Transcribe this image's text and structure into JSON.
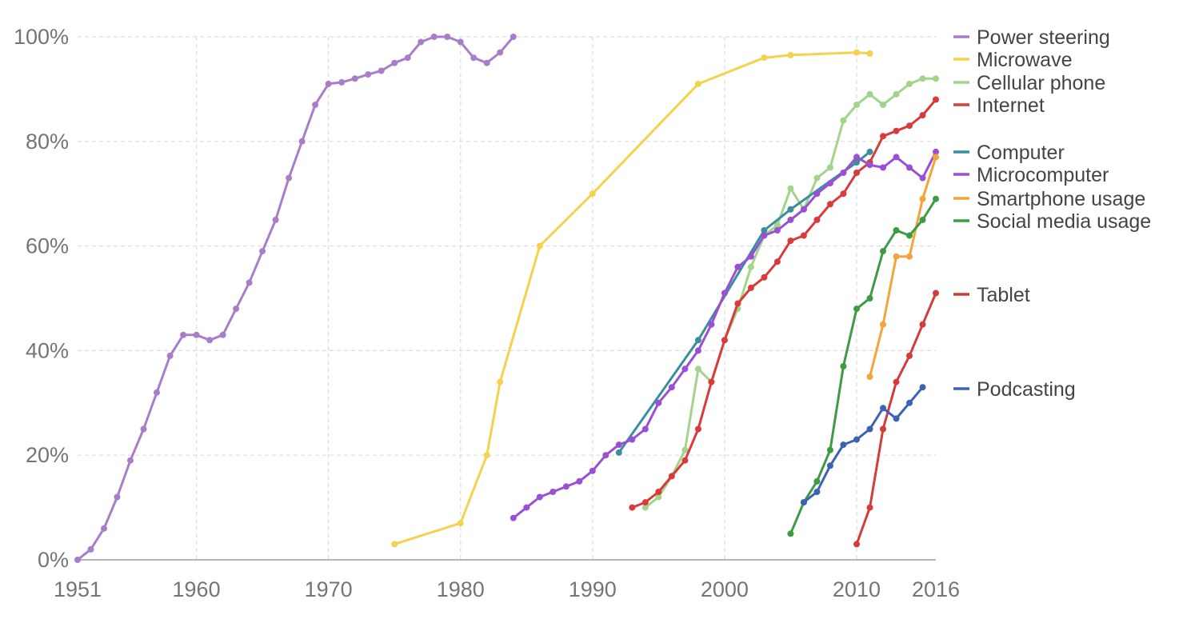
{
  "chart_data": {
    "type": "line",
    "title": "",
    "xlabel": "",
    "ylabel": "",
    "xlim": [
      1951,
      2016
    ],
    "ylim": [
      0,
      100
    ],
    "grid": true,
    "legend_placement": "right",
    "x_ticks": [
      {
        "value": 1951,
        "label": "1951"
      },
      {
        "value": 1960,
        "label": "1960"
      },
      {
        "value": 1970,
        "label": "1970"
      },
      {
        "value": 1980,
        "label": "1980"
      },
      {
        "value": 1990,
        "label": "1990"
      },
      {
        "value": 2000,
        "label": "2000"
      },
      {
        "value": 2010,
        "label": "2010"
      },
      {
        "value": 2016,
        "label": "2016"
      }
    ],
    "y_ticks": [
      {
        "value": 0,
        "label": "0%"
      },
      {
        "value": 20,
        "label": "20%"
      },
      {
        "value": 40,
        "label": "40%"
      },
      {
        "value": 60,
        "label": "60%"
      },
      {
        "value": 80,
        "label": "80%"
      },
      {
        "value": 100,
        "label": "100%"
      }
    ],
    "series": [
      {
        "name": "Power steering",
        "color": "#a97ec9",
        "x": [
          1951,
          1952,
          1953,
          1954,
          1955,
          1956,
          1957,
          1958,
          1959,
          1960,
          1961,
          1962,
          1963,
          1964,
          1965,
          1966,
          1967,
          1968,
          1969,
          1970,
          1971,
          1972,
          1973,
          1974,
          1975,
          1976,
          1977,
          1978,
          1979,
          1980,
          1981,
          1982,
          1983,
          1984
        ],
        "y": [
          0,
          2,
          6,
          12,
          19,
          25,
          32,
          39,
          43,
          43,
          42,
          43,
          48,
          53,
          59,
          65,
          73,
          80,
          87,
          91,
          91.3,
          92,
          92.8,
          93.5,
          95,
          96,
          99,
          100,
          100,
          99,
          96,
          95,
          97,
          100
        ]
      },
      {
        "name": "Microwave",
        "color": "#f5d24e",
        "x": [
          1975,
          1980,
          1982,
          1983,
          1986,
          1990,
          1998,
          2003,
          2005,
          2010,
          2011
        ],
        "y": [
          3,
          7,
          20,
          34,
          60,
          70,
          91,
          96,
          96.5,
          97,
          96.8
        ]
      },
      {
        "name": "Cellular phone",
        "color": "#a3d48a",
        "x": [
          1994,
          1995,
          1996,
          1997,
          1998,
          1999,
          2000,
          2001,
          2002,
          2003,
          2004,
          2005,
          2006,
          2007,
          2008,
          2009,
          2010,
          2011,
          2012,
          2013,
          2014,
          2015,
          2016
        ],
        "y": [
          10,
          12,
          16,
          21,
          36.5,
          34,
          42,
          48,
          56,
          62,
          64,
          71,
          67,
          73,
          75,
          84,
          87,
          89,
          87,
          89,
          91,
          92,
          92
        ]
      },
      {
        "name": "Internet",
        "color": "#d93a3a",
        "x": [
          1993,
          1994,
          1995,
          1996,
          1997,
          1998,
          1999,
          2000,
          2001,
          2002,
          2003,
          2004,
          2005,
          2006,
          2007,
          2008,
          2009,
          2010,
          2011,
          2012,
          2013,
          2014,
          2015,
          2016
        ],
        "y": [
          10,
          11,
          13,
          16,
          19,
          25,
          34,
          42,
          49,
          52,
          54,
          57,
          61,
          62,
          65,
          68,
          70,
          74,
          76,
          81,
          82,
          83,
          85,
          88
        ]
      },
      {
        "name": "Computer",
        "color": "#3a8f9e",
        "x": [
          1992,
          1998,
          2003,
          2005,
          2010,
          2011
        ],
        "y": [
          20.5,
          42,
          63,
          67,
          76,
          78
        ]
      },
      {
        "name": "Microcomputer",
        "color": "#9b4fd4",
        "x": [
          1984,
          1985,
          1986,
          1987,
          1988,
          1989,
          1990,
          1991,
          1992,
          1993,
          1994,
          1995,
          1996,
          1997,
          1998,
          1999,
          2000,
          2001,
          2002,
          2003,
          2004,
          2005,
          2006,
          2007,
          2008,
          2009,
          2010,
          2011,
          2012,
          2013,
          2014,
          2015,
          2016
        ],
        "y": [
          8,
          10,
          12,
          13,
          14,
          15,
          17,
          20,
          22,
          23,
          25,
          30,
          33,
          36.5,
          40,
          45,
          51,
          56,
          58,
          62,
          63,
          65,
          67,
          70,
          72,
          74,
          77,
          75.5,
          75,
          77,
          75,
          73,
          78
        ]
      },
      {
        "name": "Smartphone usage",
        "color": "#f2a53a",
        "x": [
          2011,
          2012,
          2013,
          2014,
          2015,
          2016
        ],
        "y": [
          35,
          45,
          58,
          58,
          69,
          77
        ]
      },
      {
        "name": "Social media usage",
        "color": "#3f9a44",
        "x": [
          2005,
          2006,
          2007,
          2008,
          2009,
          2010,
          2011,
          2012,
          2013,
          2014,
          2015,
          2016
        ],
        "y": [
          5,
          11,
          15,
          21,
          37,
          48,
          50,
          59,
          63,
          62,
          65,
          69
        ]
      },
      {
        "name": "Tablet",
        "color": "#d43c3c",
        "x": [
          2010,
          2011,
          2012,
          2013,
          2014,
          2015,
          2016
        ],
        "y": [
          3,
          10,
          25,
          34,
          39,
          45,
          51
        ]
      },
      {
        "name": "Podcasting",
        "color": "#3c62b4",
        "x": [
          2006,
          2007,
          2008,
          2009,
          2010,
          2011,
          2012,
          2013,
          2014,
          2015
        ],
        "y": [
          11,
          13,
          18,
          22,
          23,
          25,
          29,
          27,
          30,
          33
        ]
      }
    ]
  }
}
